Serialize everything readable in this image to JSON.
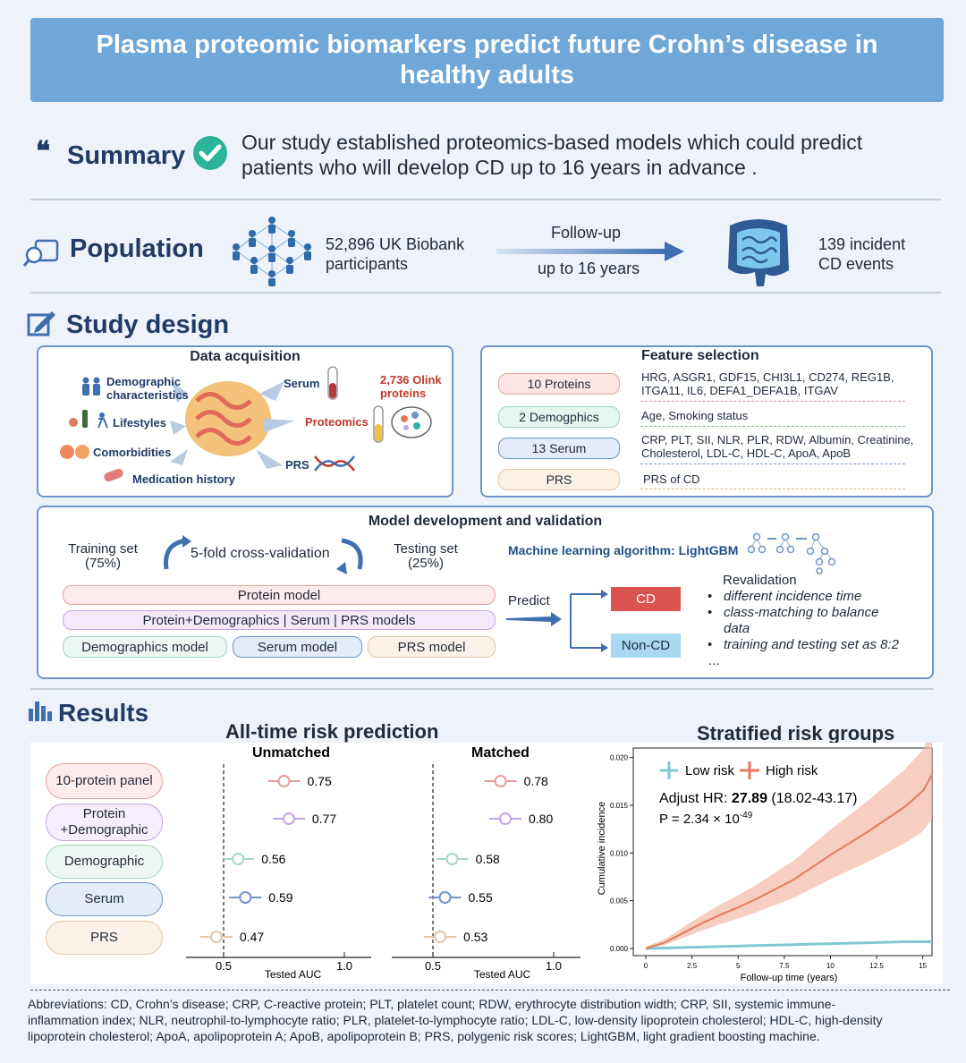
{
  "title": "Plasma proteomic biomarkers predict future Crohn’s disease in healthy adults",
  "summary": {
    "heading": "Summary",
    "text_line1": "Our study established proteomics-based models which could predict",
    "text_line2": "patients who will develop CD up to 16 years in advance ."
  },
  "population": {
    "heading": "Population",
    "participants_line1": "52,896 UK Biobank",
    "participants_line2": "participants",
    "followup_top": "Follow-up",
    "followup_bottom": "up to 16 years",
    "events_line1": "139 incident",
    "events_line2": "CD events"
  },
  "study_design": {
    "heading": "Study design",
    "data_acquisition": {
      "title": "Data acquisition",
      "demographic_line1": "Demographic",
      "demographic_line2": "characteristics",
      "lifestyles": "Lifestyles",
      "comorbidities": "Comorbidities",
      "medication": "Medication history",
      "serum": "Serum",
      "proteomics": "Proteomics",
      "prs": "PRS",
      "olink_line1": "2,736 Olink",
      "olink_line2": "proteins"
    },
    "feature_selection": {
      "title": "Feature selection",
      "rows": [
        {
          "label": "10 Proteins",
          "detail_line1": "HRG, ASGR1, GDF15, CHI3L1, CD274, REG1B,",
          "detail_line2": "ITGA11, IL6, DEFA1_DEFA1B, ITGAV"
        },
        {
          "label": "2 Demogphics",
          "detail_line1": "Age, Smoking status",
          "detail_line2": ""
        },
        {
          "label": "13 Serum",
          "detail_line1": "CRP, PLT, SII, NLR, PLR, RDW, Albumin, Creatinine,",
          "detail_line2": "Cholesterol, LDL-C, HDL-C, ApoA, ApoB"
        },
        {
          "label": "PRS",
          "detail_line1": "PRS of CD",
          "detail_line2": ""
        }
      ]
    },
    "model_dev": {
      "title": "Model development and validation",
      "training_line1": "Training set",
      "training_line2": "(75%)",
      "cv": "5-fold cross-validation",
      "testing_line1": "Testing set",
      "testing_line2": "(25%)",
      "ml": "Machine learning algorithm: LightGBM",
      "protein_model": "Protein model",
      "combo_models": "Protein+Demographics | Serum | PRS models",
      "demo_model": "Demographics model",
      "serum_model": "Serum model",
      "prs_model": "PRS model",
      "predict": "Predict",
      "cd": "CD",
      "non_cd": "Non-CD",
      "revalidation_title": "Revalidation",
      "revalidation_items": [
        "different incidence time",
        "class-matching to balance",
        "training and testing set as 8:2"
      ],
      "revalidation_item2_cont": "data",
      "ellipsis": "..."
    }
  },
  "results": {
    "heading": "Results",
    "alltime_title": "All-time risk prediction",
    "stratified_title": "Stratified risk groups"
  },
  "chart_data": [
    {
      "type": "scatter",
      "title": "Unmatched",
      "xlabel": "Tested AUC",
      "xlim": [
        0.5,
        1.0
      ],
      "xticks": [
        "0.5",
        "1.0"
      ],
      "reference_line": 0.5,
      "categories": [
        "10-protein panel",
        "Protein +Demographic",
        "Demographic",
        "Serum",
        "PRS"
      ],
      "values": [
        0.75,
        0.77,
        0.56,
        0.59,
        0.47
      ],
      "labels": [
        "0.75",
        "0.77",
        "0.56",
        "0.59",
        "0.47"
      ],
      "colors": [
        "#e89a9a",
        "#c7a4e3",
        "#a6d8c2",
        "#6f95c8",
        "#e2c6a8"
      ]
    },
    {
      "type": "scatter",
      "title": "Matched",
      "xlabel": "Tested AUC",
      "xlim": [
        0.5,
        1.0
      ],
      "xticks": [
        "0.5",
        "1.0"
      ],
      "reference_line": 0.5,
      "categories": [
        "10-protein panel",
        "Protein +Demographic",
        "Demographic",
        "Serum",
        "PRS"
      ],
      "values": [
        0.78,
        0.8,
        0.58,
        0.55,
        0.53
      ],
      "labels": [
        "0.78",
        "0.80",
        "0.58",
        "0.55",
        "0.53"
      ],
      "colors": [
        "#e89a9a",
        "#c7a4e3",
        "#a6d8c2",
        "#6f95c8",
        "#e2c6a8"
      ]
    },
    {
      "type": "line",
      "title": "",
      "xlabel": "Follow-up time (years)",
      "ylabel": "Cumulative incidence",
      "xlim": [
        0,
        15.5
      ],
      "ylim": [
        0,
        0.021
      ],
      "xticks": [
        "0",
        "2.5",
        "5",
        "7.5",
        "10",
        "12.5",
        "15"
      ],
      "yticks": [
        "0.000",
        "0.005",
        "0.010",
        "0.015",
        "0.020"
      ],
      "legend": [
        "Low risk",
        "High risk"
      ],
      "legend_colors": [
        "#7fc8d0",
        "#e57a5e"
      ],
      "annotation_hr_prefix": "Adjust HR: ",
      "annotation_hr_value": "27.89",
      "annotation_hr_ci": " (18.02-43.17)",
      "annotation_p_prefix": "P = 2.34 × 10",
      "annotation_p_exp": "-49",
      "series": [
        {
          "name": "Low risk",
          "x": [
            0,
            2,
            4,
            6,
            8,
            10,
            12,
            14,
            15.5
          ],
          "y": [
            0.0,
            0.0001,
            0.0002,
            0.0003,
            0.0004,
            0.0005,
            0.0006,
            0.0007,
            0.0007
          ]
        },
        {
          "name": "High risk",
          "x": [
            0,
            1,
            2,
            3,
            4,
            5,
            6,
            7,
            8,
            9,
            10,
            11,
            12,
            13,
            14,
            15,
            15.5
          ],
          "y": [
            0.0,
            0.0006,
            0.0016,
            0.0026,
            0.0035,
            0.0043,
            0.0052,
            0.0062,
            0.0072,
            0.0085,
            0.0098,
            0.011,
            0.0122,
            0.0135,
            0.0148,
            0.0165,
            0.0182
          ]
        }
      ]
    }
  ],
  "abbreviations": {
    "line1": "Abbreviations: CD, Crohn’s disease; CRP, C-reactive protein; PLT, platelet count; RDW, erythrocyte distribution width; CRP,  SII, systemic immune-",
    "line2": "inflammation index; NLR, neutrophil-to-lymphocyte ratio; PLR, platelet-to-lymphocyte ratio; LDL-C, low-density lipoprotein cholesterol; HDL-C, high-density",
    "line3": "lipoprotein cholesterol; ApoA, apolipoprotein A; ApoB, apolipoprotein B; PRS, polygenic risk scores; LightGBM, light gradient boosting machine."
  }
}
